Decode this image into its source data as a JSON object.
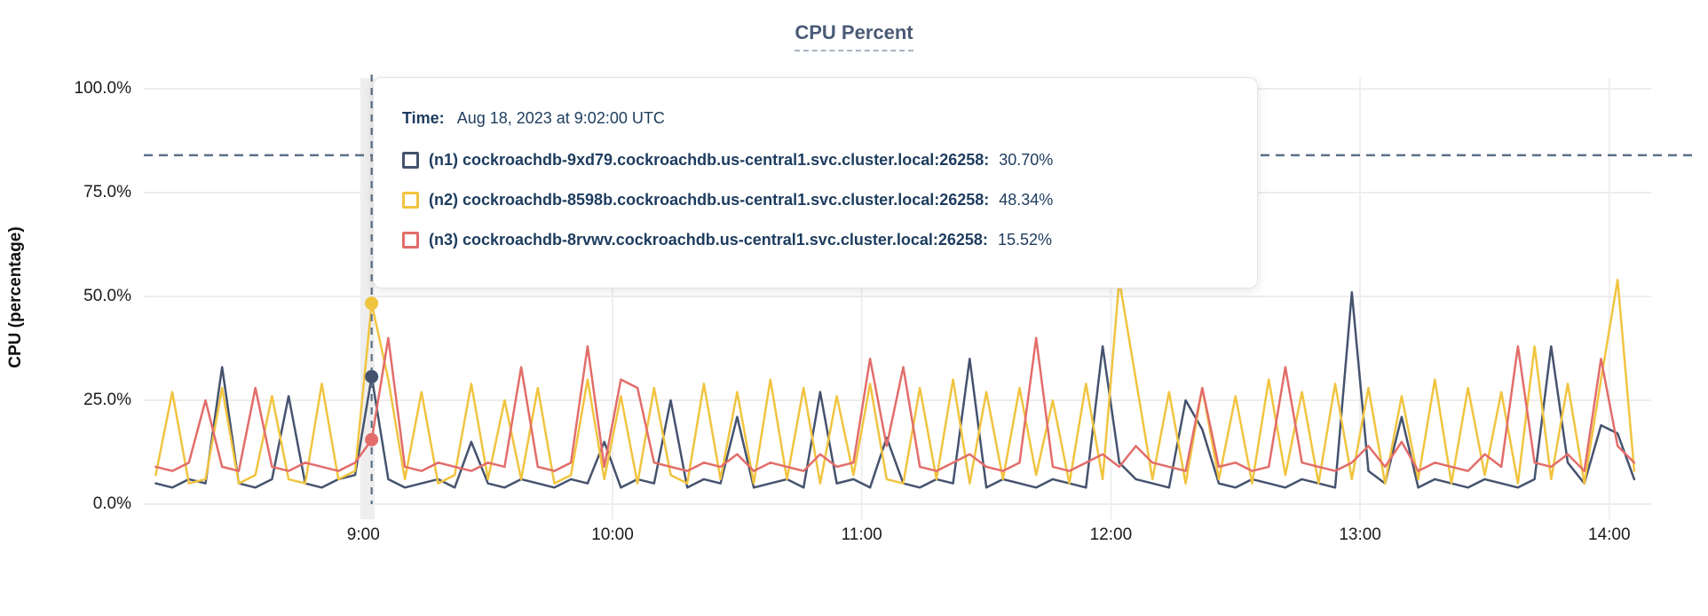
{
  "tooltip": {
    "time_label": "Time:",
    "time_value": "Aug 18, 2023 at 9:02:00 UTC",
    "rows": [
      {
        "label": "(n1) cockroachdb-9xd79.cockroachdb.us-central1.svc.cluster.local:26258:",
        "value": "30.70%"
      },
      {
        "label": "(n2) cockroachdb-8598b.cockroachdb.us-central1.svc.cluster.local:26258:",
        "value": "48.34%"
      },
      {
        "label": "(n3) cockroachdb-8rvwv.cockroachdb.us-central1.svc.cluster.local:26258:",
        "value": "15.52%"
      }
    ]
  },
  "chart_data": {
    "type": "line",
    "title": "CPU Percent",
    "ylabel": "CPU (percentage)",
    "grid": true,
    "x_axis": {
      "start_hour": 8.1667,
      "step_minutes": 4,
      "points": 90,
      "tick_hours": [
        9,
        10,
        11,
        12,
        13,
        14
      ],
      "tick_labels": [
        "9:00",
        "10:00",
        "11:00",
        "12:00",
        "13:00",
        "14:00"
      ]
    },
    "y_axis": {
      "min": 0,
      "max": 100,
      "ticks": [
        0,
        25,
        50,
        75,
        100
      ],
      "tick_labels": [
        "0.0%",
        "25.0%",
        "50.0%",
        "75.0%",
        "100.0%"
      ]
    },
    "threshold_percent": 84,
    "hover": {
      "hour": 9.0333,
      "time": "9:02",
      "points": [
        {
          "series": "n1",
          "value": 30.7
        },
        {
          "series": "n2",
          "value": 48.34
        },
        {
          "series": "n3",
          "value": 15.52
        }
      ]
    },
    "series": [
      {
        "name": "n1",
        "label": "(n1) cockroachdb-9xd79.cockroachdb.us-central1.svc.cluster.local:26258",
        "color": "#45536e",
        "values": [
          5,
          4,
          6,
          5,
          33,
          5,
          4,
          6,
          26,
          5,
          4,
          6,
          7,
          30.7,
          6,
          4,
          5,
          6,
          4,
          15,
          5,
          4,
          6,
          5,
          4,
          6,
          5,
          15,
          4,
          6,
          5,
          25,
          4,
          6,
          5,
          21,
          4,
          5,
          6,
          4,
          27,
          5,
          6,
          4,
          16,
          5,
          4,
          6,
          5,
          35,
          4,
          6,
          5,
          4,
          6,
          5,
          4,
          38,
          10,
          6,
          5,
          4,
          25,
          18,
          5,
          4,
          6,
          5,
          4,
          6,
          5,
          4,
          51,
          8,
          5,
          21,
          4,
          6,
          5,
          4,
          6,
          5,
          4,
          6,
          38,
          10,
          5,
          19,
          17,
          6
        ]
      },
      {
        "name": "n2",
        "label": "(n2) cockroachdb-8598b.cockroachdb.us-central1.svc.cluster.local:26258",
        "color": "#f1c440",
        "values": [
          7,
          27,
          5,
          6,
          28,
          5,
          7,
          26,
          6,
          5,
          29,
          6,
          8,
          48.3,
          30,
          6,
          27,
          5,
          7,
          29,
          6,
          25,
          6,
          28,
          5,
          7,
          30,
          6,
          26,
          5,
          28,
          7,
          5,
          29,
          6,
          27,
          5,
          30,
          6,
          28,
          5,
          26,
          7,
          29,
          6,
          5,
          28,
          6,
          30,
          5,
          27,
          6,
          28,
          7,
          25,
          5,
          29,
          6,
          54,
          30,
          6,
          27,
          5,
          28,
          6,
          26,
          5,
          30,
          7,
          27,
          5,
          29,
          6,
          28,
          5,
          26,
          6,
          30,
          5,
          28,
          7,
          27,
          5,
          38,
          6,
          29,
          5,
          30,
          54,
          8
        ]
      },
      {
        "name": "n3",
        "label": "(n3) cockroachdb-8rvwv.cockroachdb.us-central1.svc.cluster.local:26258",
        "color": "#e26d6a",
        "values": [
          9,
          8,
          10,
          25,
          9,
          8,
          28,
          9,
          8,
          10,
          9,
          8,
          10,
          15.5,
          40,
          9,
          8,
          10,
          9,
          8,
          10,
          9,
          33,
          9,
          8,
          10,
          38,
          9,
          30,
          28,
          10,
          9,
          8,
          10,
          9,
          12,
          8,
          10,
          9,
          8,
          12,
          9,
          10,
          35,
          14,
          33,
          9,
          8,
          10,
          12,
          9,
          8,
          10,
          40,
          9,
          8,
          10,
          12,
          9,
          14,
          10,
          9,
          8,
          28,
          9,
          10,
          8,
          9,
          33,
          10,
          9,
          8,
          10,
          14,
          9,
          15,
          8,
          10,
          9,
          8,
          12,
          9,
          38,
          10,
          9,
          12,
          8,
          35,
          14,
          10
        ]
      }
    ]
  }
}
